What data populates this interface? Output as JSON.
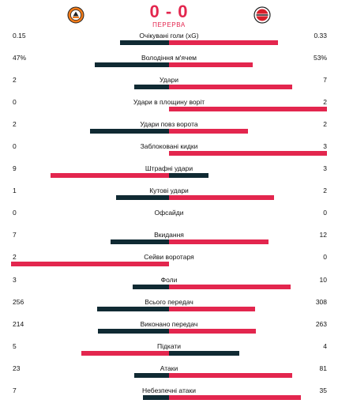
{
  "match": {
    "score": "0 - 0",
    "status": "ПЕРЕРВА",
    "home_logo": "shakhtar-logo-icon",
    "away_logo": "feyenoord-logo-icon"
  },
  "colors": {
    "winner": "#e3264e",
    "loser": "#102a33",
    "accent": "#e3264e"
  },
  "stats": [
    {
      "label": "Очікувані голи (xG)",
      "home": "0.15",
      "away": "0.33",
      "hn": 0.15,
      "an": 0.33
    },
    {
      "label": "Володіння м'ячем",
      "home": "47%",
      "away": "53%",
      "hn": 47,
      "an": 53
    },
    {
      "label": "Удари",
      "home": "2",
      "away": "7",
      "hn": 2,
      "an": 7
    },
    {
      "label": "Удари в площину воріт",
      "home": "0",
      "away": "2",
      "hn": 0,
      "an": 2
    },
    {
      "label": "Удари повз ворота",
      "home": "2",
      "away": "2",
      "hn": 2,
      "an": 2
    },
    {
      "label": "Заблоковані кидки",
      "home": "0",
      "away": "3",
      "hn": 0,
      "an": 3
    },
    {
      "label": "Штрафні удари",
      "home": "9",
      "away": "3",
      "hn": 9,
      "an": 3
    },
    {
      "label": "Кутові удари",
      "home": "1",
      "away": "2",
      "hn": 1,
      "an": 2
    },
    {
      "label": "Офсайди",
      "home": "0",
      "away": "0",
      "hn": 0,
      "an": 0
    },
    {
      "label": "Вкидання",
      "home": "7",
      "away": "12",
      "hn": 7,
      "an": 12
    },
    {
      "label": "Сейви воротаря",
      "home": "2",
      "away": "0",
      "hn": 2,
      "an": 0
    },
    {
      "label": "Фоли",
      "home": "3",
      "away": "10",
      "hn": 3,
      "an": 10
    },
    {
      "label": "Всього передач",
      "home": "256",
      "away": "308",
      "hn": 256,
      "an": 308
    },
    {
      "label": "Виконано передач",
      "home": "214",
      "away": "263",
      "hn": 214,
      "an": 263
    },
    {
      "label": "Підкати",
      "home": "5",
      "away": "4",
      "hn": 5,
      "an": 4
    },
    {
      "label": "Атаки",
      "home": "23",
      "away": "81",
      "hn": 23,
      "an": 81
    },
    {
      "label": "Небезпечні атаки",
      "home": "7",
      "away": "35",
      "hn": 7,
      "an": 35
    }
  ]
}
